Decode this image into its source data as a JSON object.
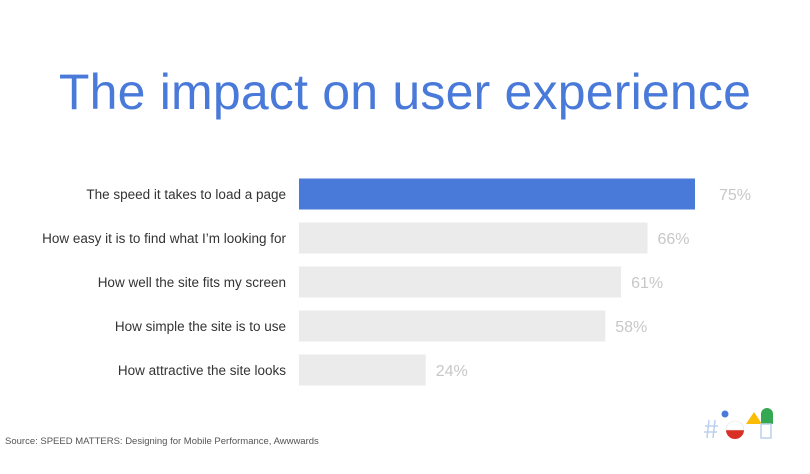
{
  "title": "The impact on user experience",
  "source": "Source: SPEED MATTERS: Designing for Mobile Performance, Awwwards",
  "logo_icon": "io-logo-icon",
  "colors": {
    "title": "#4a7ad9",
    "highlight_bar": "#4a7ad9",
    "highlight_text": "#3a74c7",
    "bar": "#ebebeb",
    "value": "#c7c7c7",
    "label": "#333333"
  },
  "chart_data": {
    "type": "bar",
    "orientation": "horizontal",
    "title": "The impact on user experience",
    "categories": [
      "The speed it takes to load a page",
      "How easy it is to find what I’m looking for",
      "How well the site fits my screen",
      "How simple the site is to use",
      "How attractive the site looks"
    ],
    "values": [
      75,
      66,
      61,
      58,
      24
    ],
    "value_labels": [
      "75%",
      "66%",
      "61%",
      "58%",
      "24%"
    ],
    "highlight_index": 0,
    "xlim": [
      0,
      75
    ],
    "unit": "%",
    "grid": false,
    "legend": "none"
  }
}
